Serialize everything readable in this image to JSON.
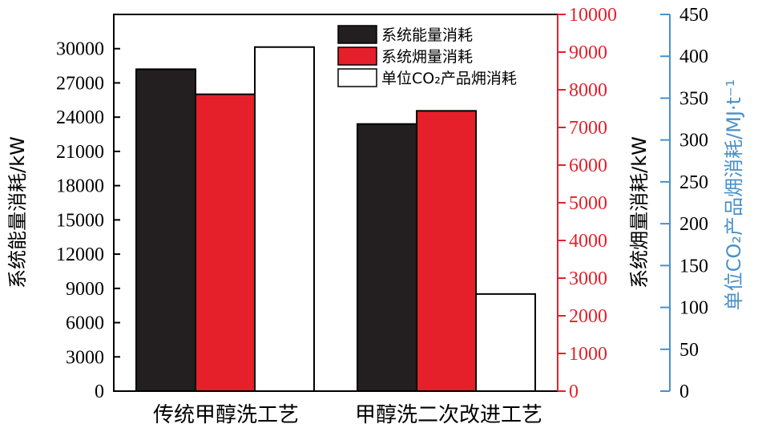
{
  "chart_data": {
    "type": "bar",
    "categories": [
      "传统甲醇洗工艺",
      "甲醇洗二次改进工艺"
    ],
    "series": [
      {
        "name": "系统能量消耗",
        "axis": "left",
        "values": [
          28200,
          23400
        ]
      },
      {
        "name": "系统㶲量消耗",
        "axis": "right",
        "values": [
          7880,
          7440
        ]
      },
      {
        "name": "单位CO₂产品㶲消耗",
        "axis": "right2",
        "values": [
          411,
          116
        ]
      }
    ],
    "axes": {
      "left": {
        "label": "系统能量消耗/kW",
        "ylim": [
          0,
          33000
        ],
        "ticks": [
          "0",
          "3000",
          "6000",
          "9000",
          "12000",
          "15000",
          "18000",
          "21000",
          "24000",
          "27000",
          "30000"
        ],
        "color": "#000000"
      },
      "right": {
        "label": "系统㶲量消耗/kW",
        "ylim": [
          0,
          10000
        ],
        "ticks": [
          "0",
          "1000",
          "2000",
          "3000",
          "4000",
          "5000",
          "6000",
          "7000",
          "8000",
          "9000",
          "10000"
        ],
        "color": "#e5202b"
      },
      "right2": {
        "label": "单位CO₂产品㶲消耗/MJ·t⁻¹",
        "ylim": [
          0,
          450
        ],
        "ticks": [
          "0",
          "50",
          "100",
          "150",
          "200",
          "250",
          "300",
          "350",
          "400",
          "450"
        ],
        "color": "#4a90c8"
      }
    },
    "colors": {
      "series1": "#231f20",
      "series2": "#e5202b",
      "series3": "#ffffff"
    },
    "legend": "top-right",
    "grid": false
  }
}
